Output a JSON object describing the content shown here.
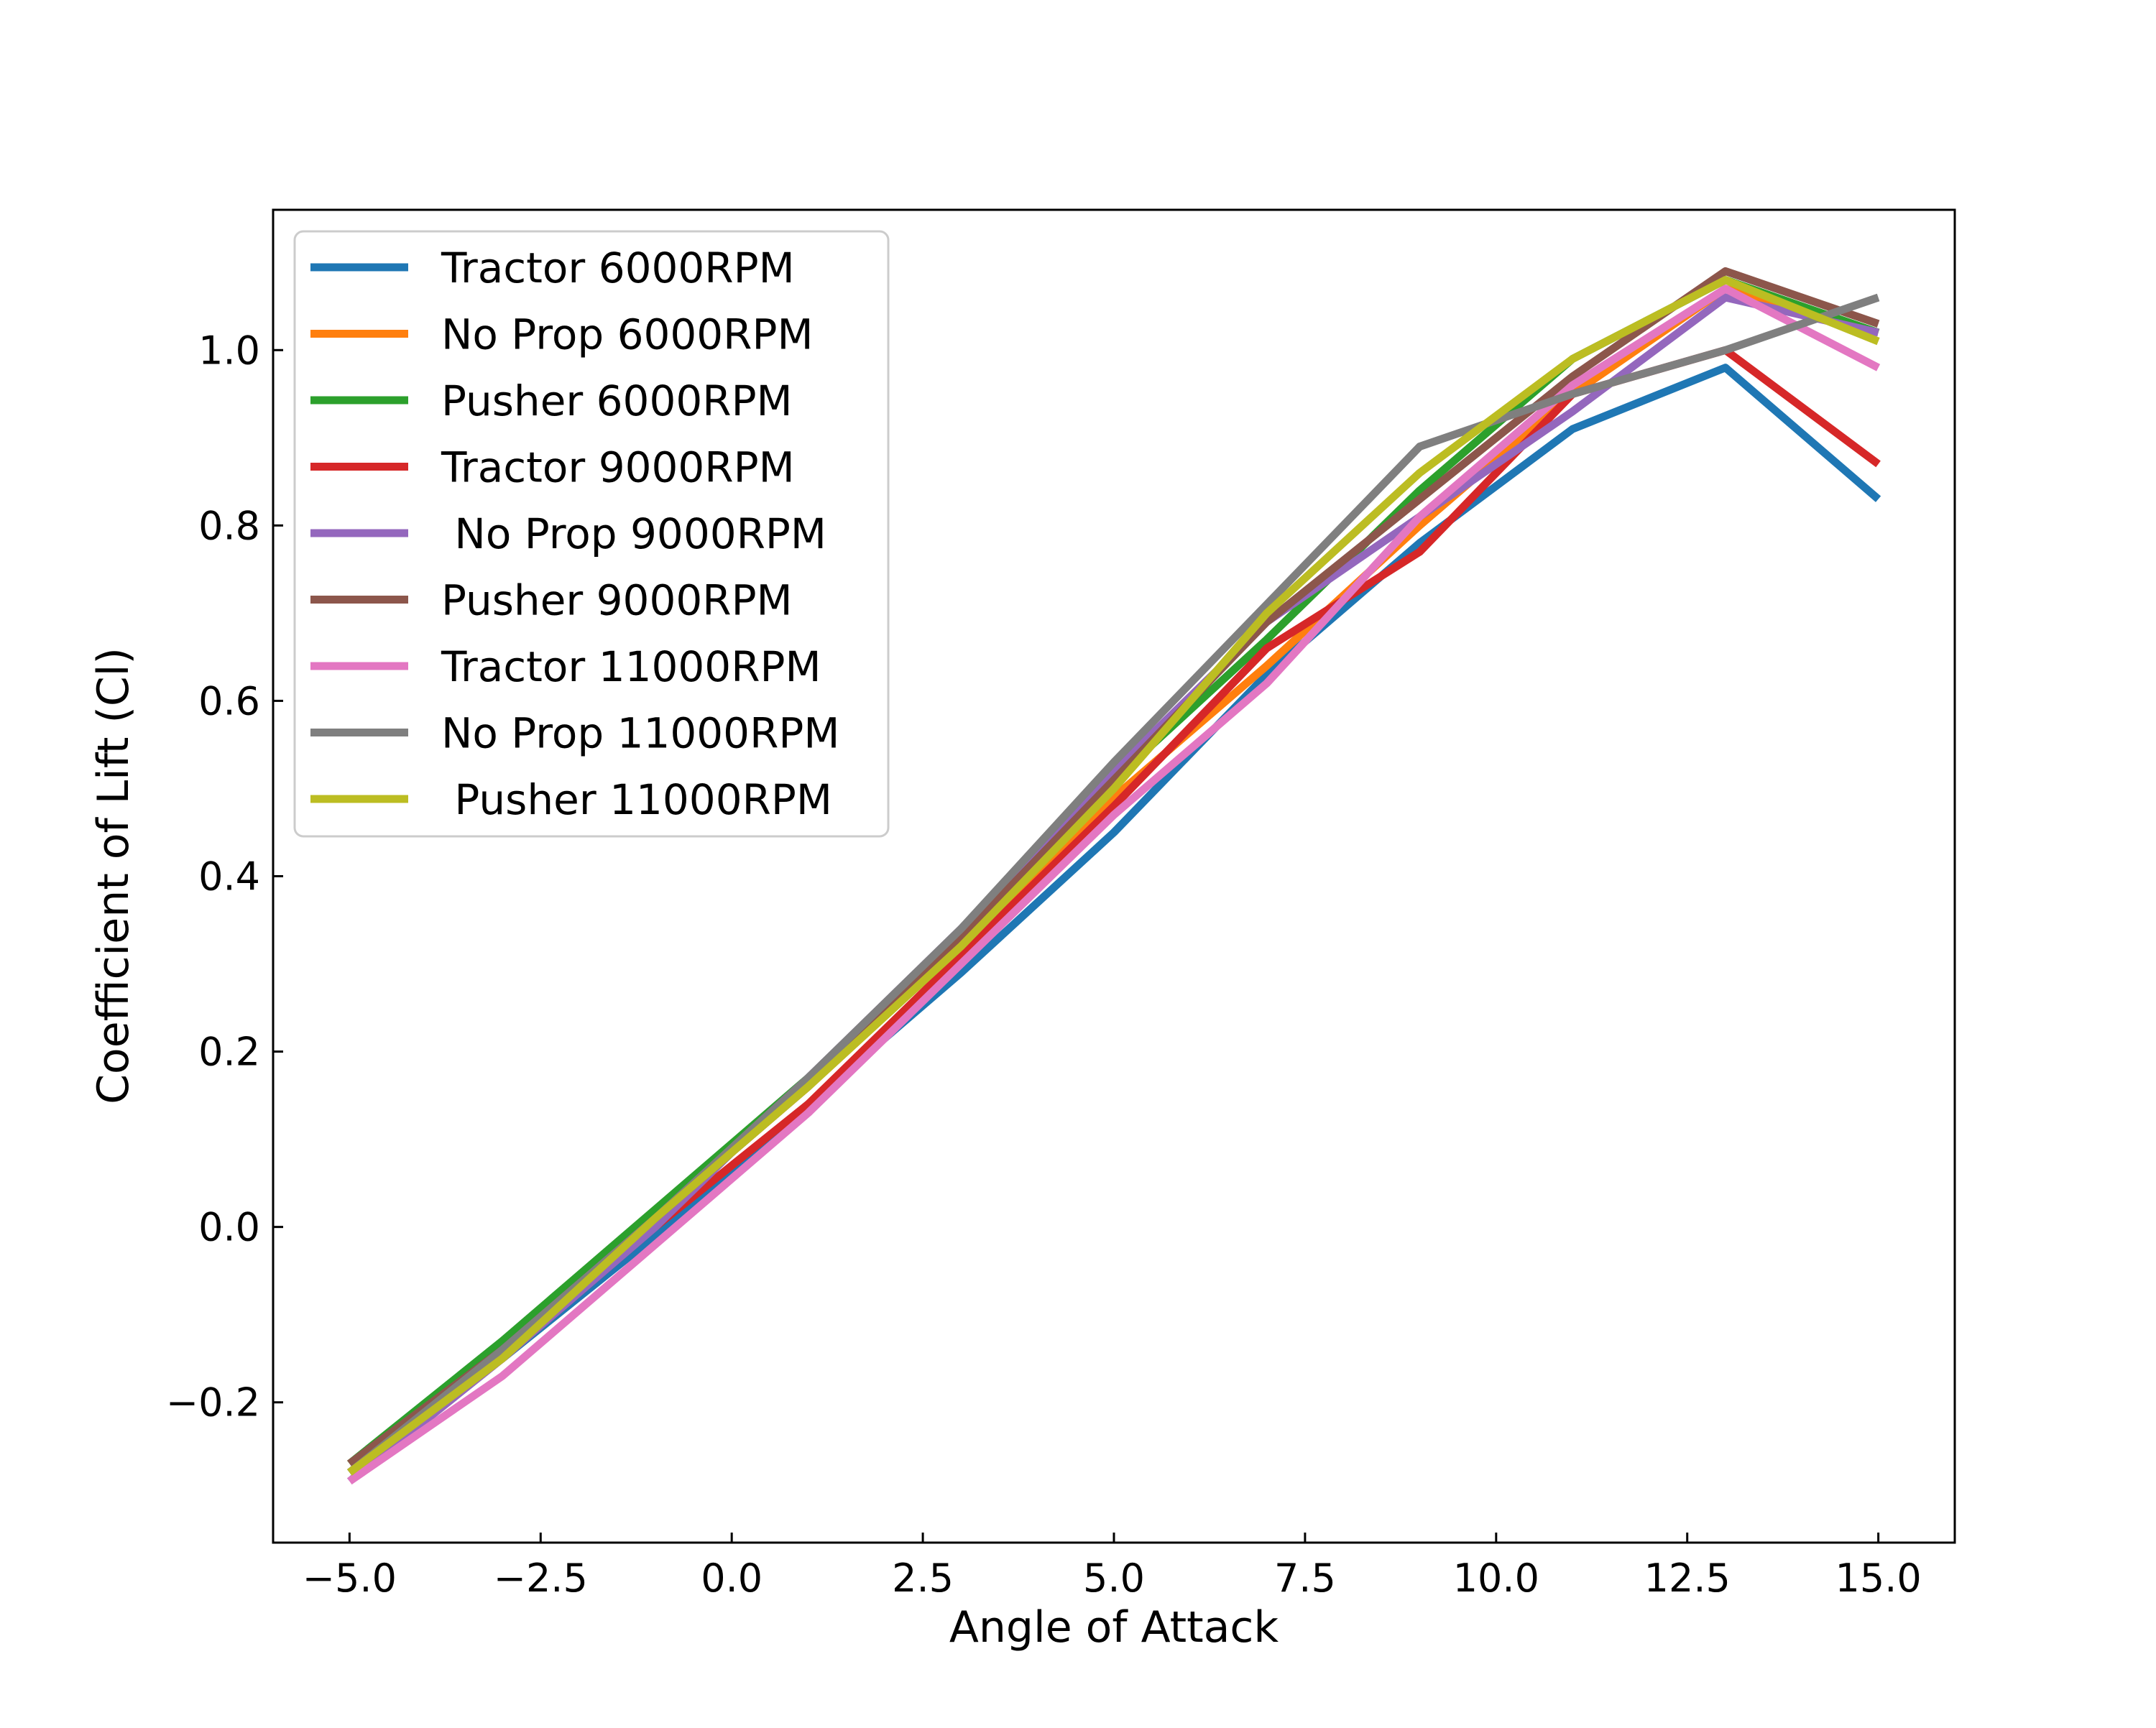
{
  "chart_data": {
    "type": "line",
    "title": "",
    "xlabel": "Angle of Attack",
    "ylabel": "Coefficient of Lift (Cl)",
    "xlim": [
      -6,
      16
    ],
    "ylim": [
      -0.36,
      1.16
    ],
    "xticks": [
      -5.0,
      -2.5,
      0.0,
      2.5,
      5.0,
      7.5,
      10.0,
      12.5,
      15.0
    ],
    "xtick_labels": [
      "−5.0",
      "−2.5",
      "0.0",
      "2.5",
      "5.0",
      "7.5",
      "10.0",
      "12.5",
      "15.0"
    ],
    "yticks": [
      -0.2,
      0.0,
      0.2,
      0.4,
      0.6,
      0.8,
      1.0
    ],
    "ytick_labels": [
      "−0.2",
      "0.0",
      "0.2",
      "0.4",
      "0.6",
      "0.8",
      "1.0"
    ],
    "grid": false,
    "legend_position": "top-left",
    "x": [
      -5,
      -3,
      -1,
      1,
      3,
      5,
      7,
      9,
      11,
      13,
      15
    ],
    "series": [
      {
        "name": "Tractor 6000RPM",
        "color": "#1f77b4",
        "values": [
          -0.28,
          -0.15,
          -0.01,
          0.14,
          0.29,
          0.45,
          0.63,
          0.78,
          0.91,
          0.98,
          0.83
        ]
      },
      {
        "name": "No Prop 6000RPM",
        "color": "#ff7f0e",
        "values": [
          -0.27,
          -0.14,
          0.01,
          0.16,
          0.32,
          0.49,
          0.64,
          0.8,
          0.95,
          1.07,
          1.02
        ]
      },
      {
        "name": "Pusher 6000RPM",
        "color": "#2ca02c",
        "values": [
          -0.27,
          -0.13,
          0.02,
          0.17,
          0.33,
          0.51,
          0.67,
          0.84,
          0.99,
          1.08,
          1.02
        ]
      },
      {
        "name": "Tractor 9000RPM",
        "color": "#d62728",
        "values": [
          -0.28,
          -0.15,
          0.0,
          0.14,
          0.31,
          0.48,
          0.66,
          0.77,
          0.95,
          1.0,
          0.87
        ]
      },
      {
        "name": " No Prop 9000RPM",
        "color": "#9467bd",
        "values": [
          -0.29,
          -0.15,
          0.0,
          0.17,
          0.34,
          0.52,
          0.69,
          0.81,
          0.93,
          1.06,
          1.02
        ]
      },
      {
        "name": "Pusher 9000RPM",
        "color": "#8c564b",
        "values": [
          -0.27,
          -0.14,
          0.01,
          0.16,
          0.33,
          0.51,
          0.69,
          0.83,
          0.97,
          1.09,
          1.03
        ]
      },
      {
        "name": "Tractor 11000RPM",
        "color": "#e377c2",
        "values": [
          -0.29,
          -0.17,
          -0.02,
          0.13,
          0.3,
          0.47,
          0.62,
          0.81,
          0.96,
          1.07,
          0.98
        ]
      },
      {
        "name": "No Prop 11000RPM",
        "color": "#7f7f7f",
        "values": [
          -0.28,
          -0.14,
          0.01,
          0.17,
          0.34,
          0.53,
          0.71,
          0.89,
          0.95,
          1.0,
          1.06
        ]
      },
      {
        "name": " Pusher 11000RPM",
        "color": "#bcbd22",
        "values": [
          -0.28,
          -0.15,
          0.01,
          0.16,
          0.32,
          0.5,
          0.7,
          0.86,
          0.99,
          1.08,
          1.01
        ]
      }
    ]
  }
}
